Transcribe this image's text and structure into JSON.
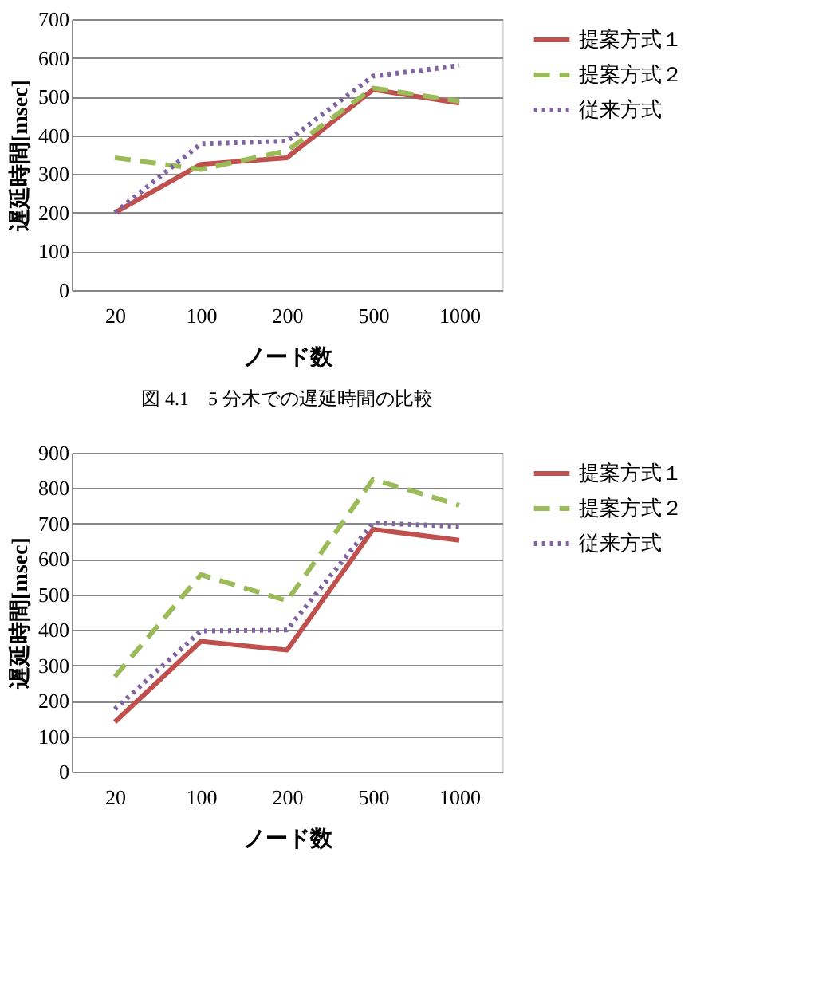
{
  "chart_data": [
    {
      "type": "line",
      "xlabel": "ノード数",
      "ylabel": "遅延時間[msec]",
      "categories": [
        "20",
        "100",
        "200",
        "500",
        "1000"
      ],
      "ylim": [
        0,
        700
      ],
      "yticks": [
        0,
        100,
        200,
        300,
        400,
        500,
        600,
        700
      ],
      "grid": "y",
      "legend": "right",
      "marker": "none",
      "annotations": [
        "図 4.1　5 分木での遅延時間の比較"
      ],
      "series": [
        {
          "name": "提案方式１",
          "color": "#c0504d",
          "line_style": "solid",
          "values": [
            200,
            325,
            342,
            518,
            483
          ]
        },
        {
          "name": "提案方式２",
          "color": "#9bbb59",
          "line_style": "dashed",
          "values": [
            342,
            312,
            360,
            522,
            488
          ]
        },
        {
          "name": "従来方式",
          "color": "#8064a2",
          "line_style": "dotted",
          "values": [
            200,
            378,
            385,
            553,
            580
          ]
        }
      ]
    },
    {
      "type": "line",
      "xlabel": "ノード数",
      "ylabel": "遅延時間[msec]",
      "categories": [
        "20",
        "100",
        "200",
        "500",
        "1000"
      ],
      "ylim": [
        0,
        900
      ],
      "yticks": [
        0,
        100,
        200,
        300,
        400,
        500,
        600,
        700,
        800,
        900
      ],
      "grid": "y",
      "legend": "right",
      "marker": "none",
      "series": [
        {
          "name": "提案方式１",
          "color": "#c0504d",
          "line_style": "solid",
          "values": [
            140,
            368,
            343,
            684,
            653
          ]
        },
        {
          "name": "提案方式２",
          "color": "#9bbb59",
          "line_style": "dashed",
          "values": [
            268,
            556,
            482,
            825,
            752
          ]
        },
        {
          "name": "従来方式",
          "color": "#8064a2",
          "line_style": "dotted",
          "values": [
            176,
            397,
            400,
            702,
            692
          ]
        }
      ]
    }
  ]
}
